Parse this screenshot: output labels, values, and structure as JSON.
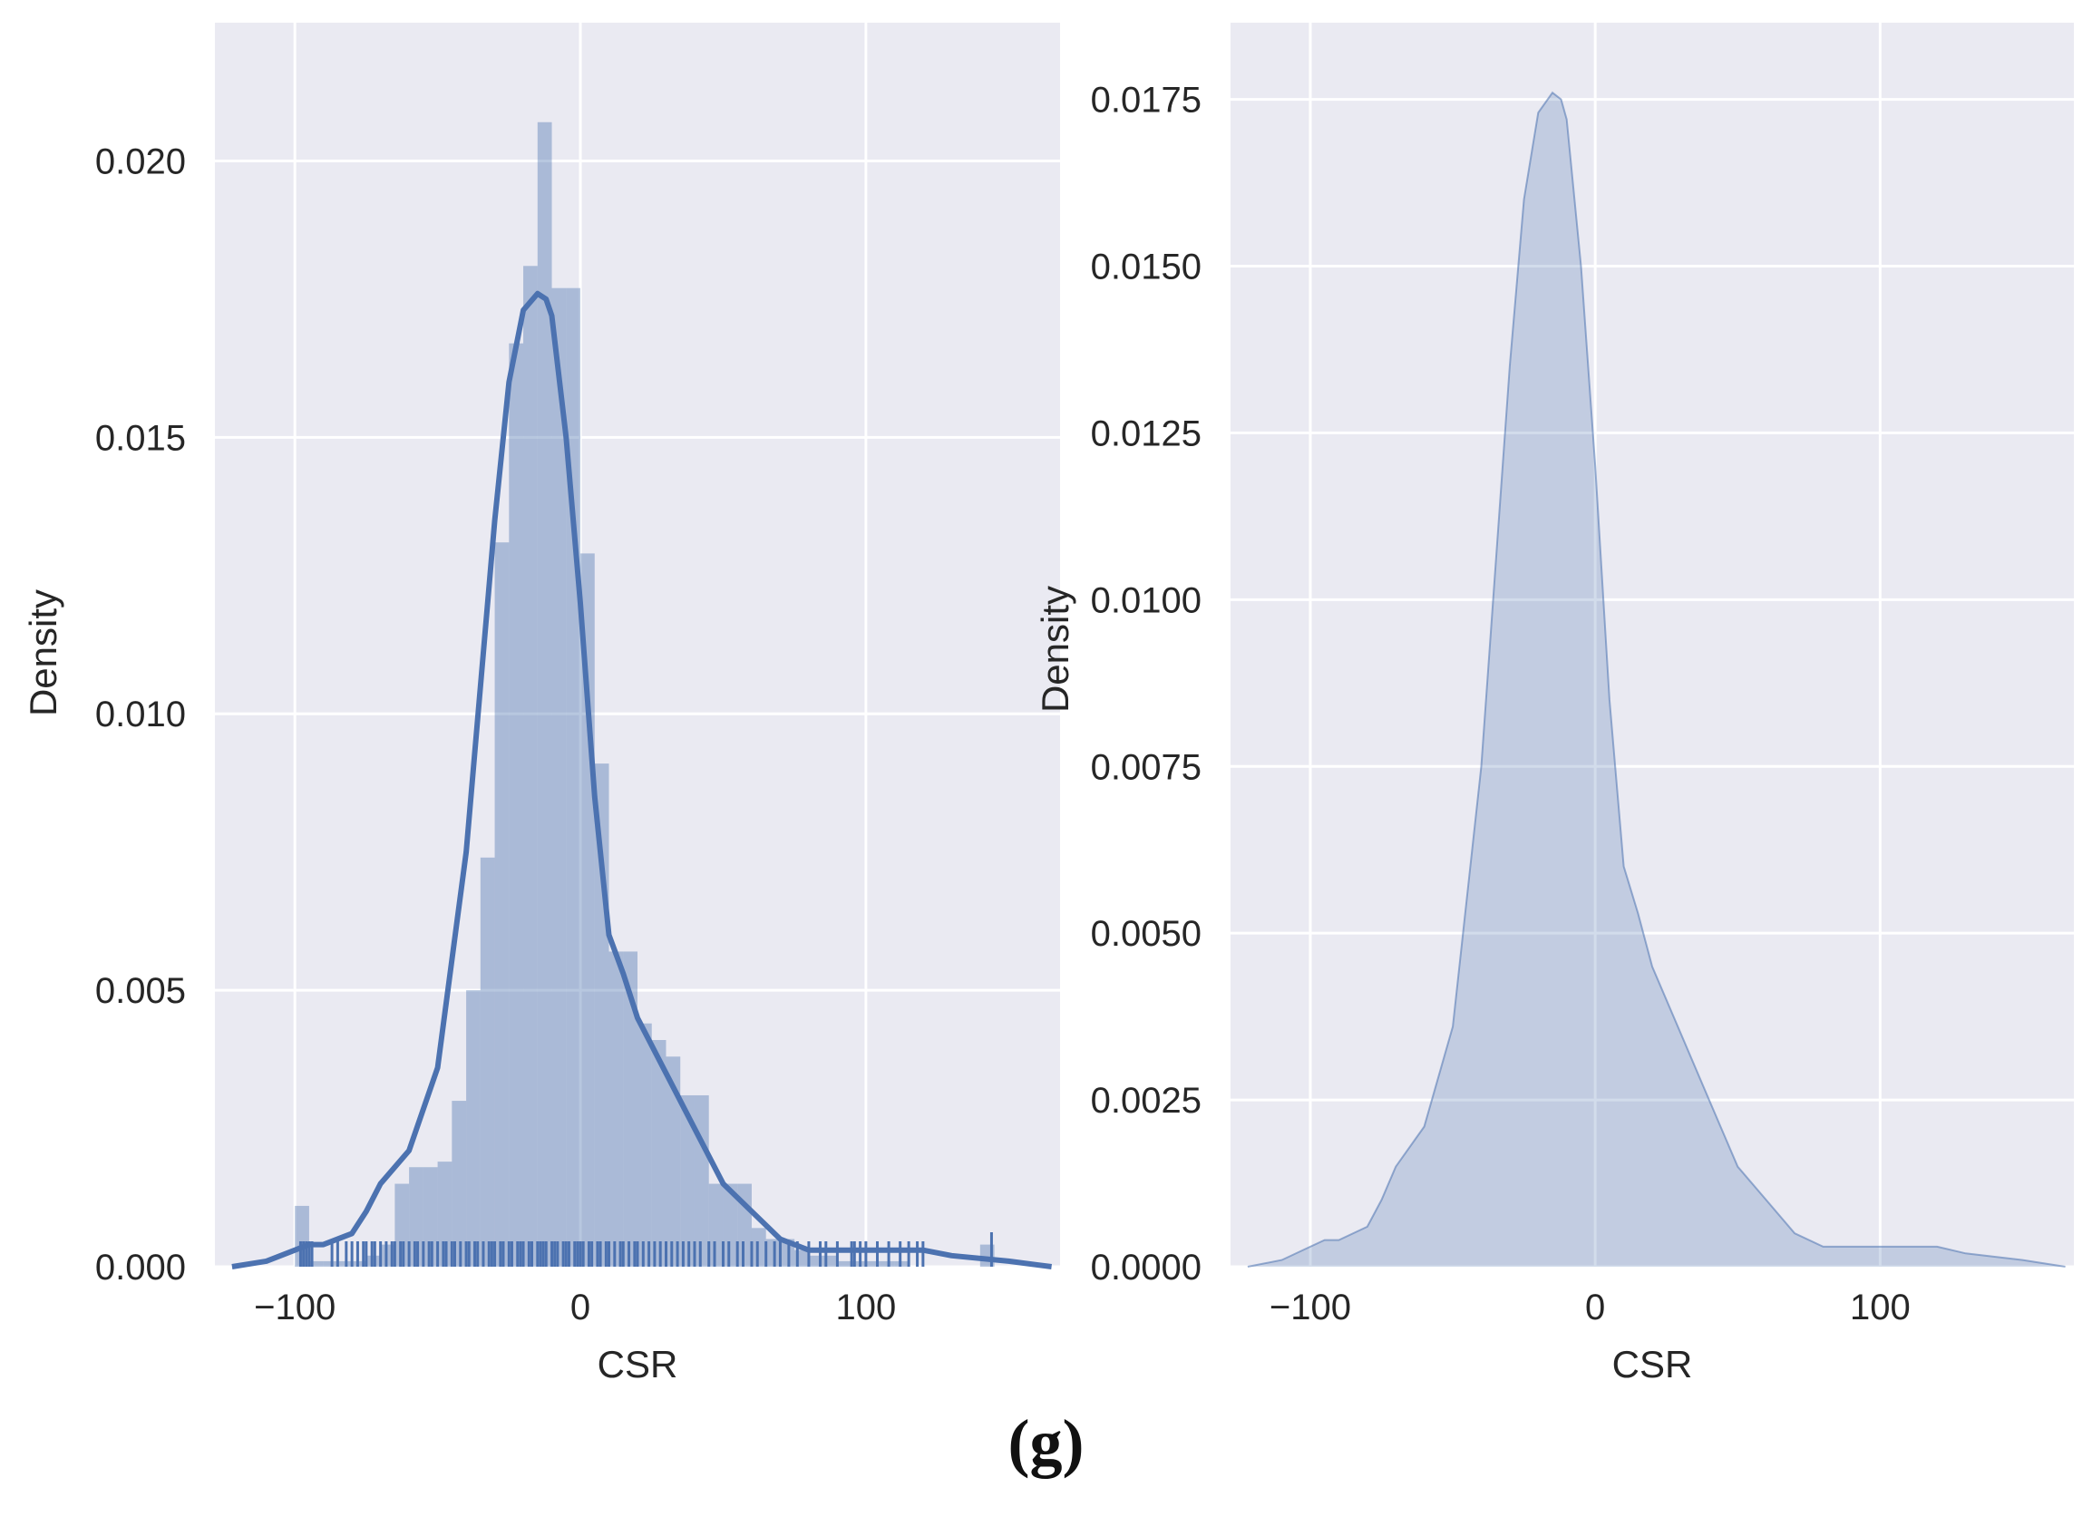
{
  "caption": "(g)",
  "chart_data": [
    {
      "type": "histogram+kde+rug",
      "xlabel": "CSR",
      "ylabel": "Density",
      "xlim": [
        -128,
        168
      ],
      "ylim": [
        0,
        0.0225
      ],
      "xticks": [
        -100,
        0,
        100
      ],
      "xtick_labels": [
        "−100",
        "0",
        "100"
      ],
      "yticks": [
        0.0,
        0.005,
        0.01,
        0.015,
        0.02
      ],
      "ytick_labels": [
        "0.000",
        "0.005",
        "0.010",
        "0.015",
        "0.020"
      ],
      "grid": true,
      "colors": {
        "background": "#eaeaf2",
        "grid": "#ffffff",
        "bar": "#4c72b0",
        "line": "#4c72b0"
      },
      "histogram": {
        "bin_edges": [
          -100,
          -95,
          -90,
          -85,
          -80,
          -75,
          -70,
          -65,
          -60,
          -55,
          -50,
          -45,
          -40,
          -35,
          -30,
          -25,
          -20,
          -15,
          -10,
          -5,
          0,
          5,
          10,
          15,
          20,
          25,
          30,
          35,
          40,
          45,
          50,
          55,
          60,
          65,
          70,
          75,
          80,
          85,
          90,
          95,
          100,
          105,
          110,
          115,
          120,
          125,
          130,
          135,
          140,
          145
        ],
        "density": [
          0.0011,
          0.0001,
          0.0001,
          0.0001,
          0.0001,
          0.0002,
          0.0004,
          0.0015,
          0.0018,
          0.0018,
          0.0019,
          0.003,
          0.005,
          0.0074,
          0.0131,
          0.0167,
          0.0181,
          0.0207,
          0.0177,
          0.0177,
          0.0129,
          0.0091,
          0.0057,
          0.0057,
          0.0044,
          0.0041,
          0.0038,
          0.0031,
          0.0031,
          0.0015,
          0.0015,
          0.0015,
          0.0007,
          0.0005,
          0.0005,
          0.0003,
          0.0002,
          0.0002,
          0.0001,
          0.0001,
          0.0001,
          0.0001,
          0.0001,
          0.0,
          0.0,
          0.0,
          0.0,
          0.0,
          0.0004
        ]
      },
      "kde": {
        "x": [
          -122,
          -110,
          -100,
          -95,
          -90,
          -80,
          -75,
          -70,
          -60,
          -50,
          -40,
          -30,
          -25,
          -20,
          -15,
          -12,
          -10,
          -5,
          0,
          5,
          10,
          15,
          20,
          30,
          40,
          50,
          60,
          70,
          80,
          90,
          100,
          110,
          120,
          130,
          150,
          165
        ],
        "y": [
          0.0,
          0.0001,
          0.0003,
          0.0004,
          0.0004,
          0.0006,
          0.001,
          0.0015,
          0.0021,
          0.0036,
          0.0075,
          0.0135,
          0.016,
          0.0173,
          0.0176,
          0.0175,
          0.0172,
          0.015,
          0.012,
          0.0085,
          0.006,
          0.0053,
          0.0045,
          0.0035,
          0.0025,
          0.0015,
          0.001,
          0.0005,
          0.0003,
          0.0003,
          0.0003,
          0.0003,
          0.0003,
          0.0002,
          0.0001,
          0.0
        ]
      },
      "rug": [
        -98,
        -97,
        -96,
        -95,
        -94,
        -87,
        -85,
        -82,
        -80,
        -78,
        -76,
        -75,
        -73,
        -72,
        -70,
        -68,
        -66,
        -65,
        -63,
        -62,
        -60,
        -58,
        -57,
        -55,
        -53,
        -52,
        -50,
        -48,
        -47,
        -45,
        -44,
        -42,
        -40,
        -39,
        -37,
        -36,
        -34,
        -32,
        -31,
        -30,
        -28,
        -27,
        -25,
        -24,
        -22,
        -21,
        -20,
        -18,
        -17,
        -15,
        -14,
        -13,
        -12,
        -10,
        -9,
        -8,
        -6,
        -5,
        -4,
        -2,
        -1,
        0,
        1,
        3,
        4,
        6,
        7,
        9,
        10,
        12,
        14,
        15,
        17,
        19,
        20,
        22,
        24,
        26,
        28,
        30,
        32,
        34,
        36,
        38,
        40,
        42,
        45,
        47,
        50,
        52,
        55,
        57,
        60,
        62,
        65,
        68,
        70,
        73,
        76,
        80,
        84,
        86,
        90,
        95,
        96,
        98,
        100,
        104,
        108,
        112,
        115,
        118,
        120,
        144
      ]
    },
    {
      "type": "kde",
      "xlabel": "CSR",
      "ylabel": "Density",
      "xlim": [
        -128,
        168
      ],
      "ylim": [
        0,
        0.01865
      ],
      "xticks": [
        -100,
        0,
        100
      ],
      "xtick_labels": [
        "−100",
        "0",
        "100"
      ],
      "yticks": [
        0.0,
        0.0025,
        0.005,
        0.0075,
        0.01,
        0.0125,
        0.015,
        0.0175
      ],
      "ytick_labels": [
        "0.0000",
        "0.0025",
        "0.0050",
        "0.0075",
        "0.0100",
        "0.0125",
        "0.0150",
        "0.0175"
      ],
      "grid": true,
      "colors": {
        "background": "#eaeaf2",
        "grid": "#ffffff",
        "fill": "#4c72b0",
        "line": "#4c72b0"
      },
      "kde": {
        "x": [
          -122,
          -110,
          -100,
          -95,
          -90,
          -80,
          -75,
          -70,
          -60,
          -50,
          -40,
          -30,
          -25,
          -20,
          -15,
          -12,
          -10,
          -5,
          0,
          5,
          10,
          15,
          20,
          30,
          40,
          50,
          60,
          70,
          80,
          90,
          100,
          110,
          115,
          120,
          130,
          150,
          165
        ],
        "y": [
          0.0,
          0.0001,
          0.0003,
          0.0004,
          0.0004,
          0.0006,
          0.001,
          0.0015,
          0.0021,
          0.0036,
          0.0075,
          0.0135,
          0.016,
          0.0173,
          0.0176,
          0.0175,
          0.0172,
          0.015,
          0.012,
          0.0085,
          0.006,
          0.0053,
          0.0045,
          0.0035,
          0.0025,
          0.0015,
          0.001,
          0.0005,
          0.0003,
          0.0003,
          0.0003,
          0.0003,
          0.0003,
          0.0003,
          0.0002,
          0.0001,
          0.0
        ]
      }
    }
  ]
}
